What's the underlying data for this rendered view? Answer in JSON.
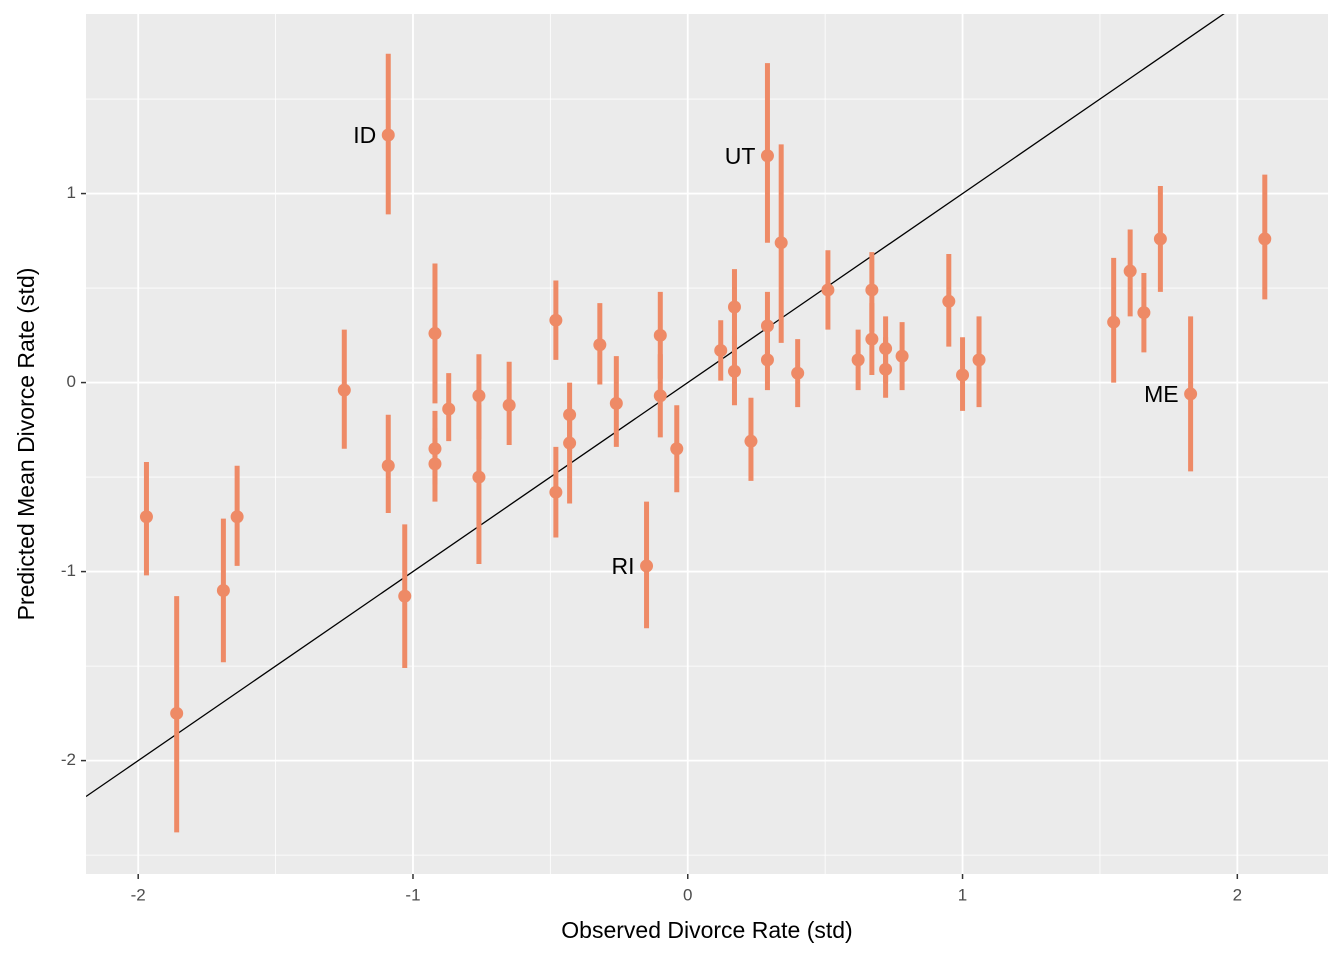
{
  "chart_data": {
    "type": "scatter",
    "xlabel": "Observed Divorce Rate (std)",
    "ylabel": "Predicted Mean Divorce Rate (std)",
    "x": [
      -1.97,
      -1.86,
      -1.69,
      -1.64,
      -1.25,
      -1.09,
      -1.09,
      -1.03,
      -0.92,
      -0.92,
      -0.92,
      -0.87,
      -0.76,
      -0.76,
      -0.65,
      -0.48,
      -0.48,
      -0.43,
      -0.43,
      -0.32,
      -0.26,
      -0.15,
      -0.1,
      -0.1,
      -0.04,
      0.12,
      0.17,
      0.17,
      0.23,
      0.29,
      0.29,
      0.29,
      0.34,
      0.4,
      0.51,
      0.62,
      0.67,
      0.67,
      0.72,
      0.72,
      0.78,
      0.95,
      1.0,
      1.06,
      1.55,
      1.61,
      1.66,
      1.72,
      1.83,
      2.1
    ],
    "y": [
      -0.71,
      -1.75,
      -1.1,
      -0.71,
      -0.04,
      1.31,
      -0.44,
      -1.13,
      0.26,
      -0.35,
      -0.43,
      -0.14,
      -0.07,
      -0.5,
      -0.12,
      0.33,
      -0.58,
      -0.17,
      -0.32,
      0.2,
      -0.11,
      -0.97,
      0.25,
      -0.07,
      -0.35,
      0.17,
      0.4,
      0.06,
      -0.31,
      1.2,
      0.3,
      0.12,
      0.74,
      0.05,
      0.49,
      0.12,
      0.49,
      0.23,
      0.18,
      0.07,
      0.14,
      0.43,
      0.04,
      0.12,
      0.32,
      0.59,
      0.37,
      0.76,
      -0.06,
      0.76
    ],
    "upper": [
      -0.42,
      -1.13,
      -0.72,
      -0.44,
      0.28,
      1.74,
      -0.17,
      -0.75,
      0.63,
      -0.15,
      -0.24,
      0.05,
      0.15,
      -0.12,
      0.11,
      0.54,
      -0.34,
      0.0,
      -0.15,
      0.42,
      0.14,
      -0.63,
      0.48,
      0.15,
      -0.12,
      0.33,
      0.6,
      0.25,
      -0.08,
      1.69,
      0.48,
      0.3,
      1.26,
      0.23,
      0.7,
      0.28,
      0.69,
      0.42,
      0.35,
      0.24,
      0.32,
      0.68,
      0.24,
      0.35,
      0.66,
      0.81,
      0.58,
      1.04,
      0.35,
      1.1
    ],
    "lower": [
      -1.02,
      -2.38,
      -1.48,
      -0.97,
      -0.35,
      0.89,
      -0.69,
      -1.51,
      -0.11,
      -0.54,
      -0.63,
      -0.31,
      -0.3,
      -0.96,
      -0.33,
      0.12,
      -0.82,
      -0.36,
      -0.64,
      -0.01,
      -0.34,
      -1.3,
      0.02,
      -0.29,
      -0.58,
      0.01,
      0.19,
      -0.12,
      -0.52,
      0.74,
      0.12,
      -0.04,
      0.21,
      -0.13,
      0.28,
      -0.04,
      0.27,
      0.04,
      0.0,
      -0.08,
      -0.04,
      0.19,
      -0.15,
      -0.13,
      0.0,
      0.35,
      0.16,
      0.48,
      -0.47,
      0.44
    ],
    "point_labels": [
      null,
      null,
      null,
      null,
      null,
      "ID",
      null,
      null,
      null,
      null,
      null,
      null,
      null,
      null,
      null,
      null,
      null,
      null,
      null,
      null,
      null,
      "RI",
      null,
      null,
      null,
      null,
      null,
      null,
      null,
      "UT",
      null,
      null,
      null,
      null,
      null,
      null,
      null,
      null,
      null,
      null,
      null,
      null,
      null,
      null,
      null,
      null,
      null,
      null,
      "ME",
      null
    ],
    "color": "#ee8a66",
    "reference_line": {
      "intercept": 0,
      "slope": 1,
      "color": "#000000"
    },
    "xlim": [
      -2.19,
      2.33
    ],
    "ylim": [
      -2.6,
      1.95
    ],
    "xticks": [
      -2,
      -1,
      0,
      1,
      2
    ],
    "yticks": [
      -2,
      -1,
      0,
      1
    ],
    "x_minor_grid": [
      -1.5,
      -0.5,
      0.5,
      1.5
    ],
    "y_minor_grid": [
      -2.5,
      -1.5,
      -0.5,
      0.5,
      1.5
    ],
    "grid": true
  }
}
